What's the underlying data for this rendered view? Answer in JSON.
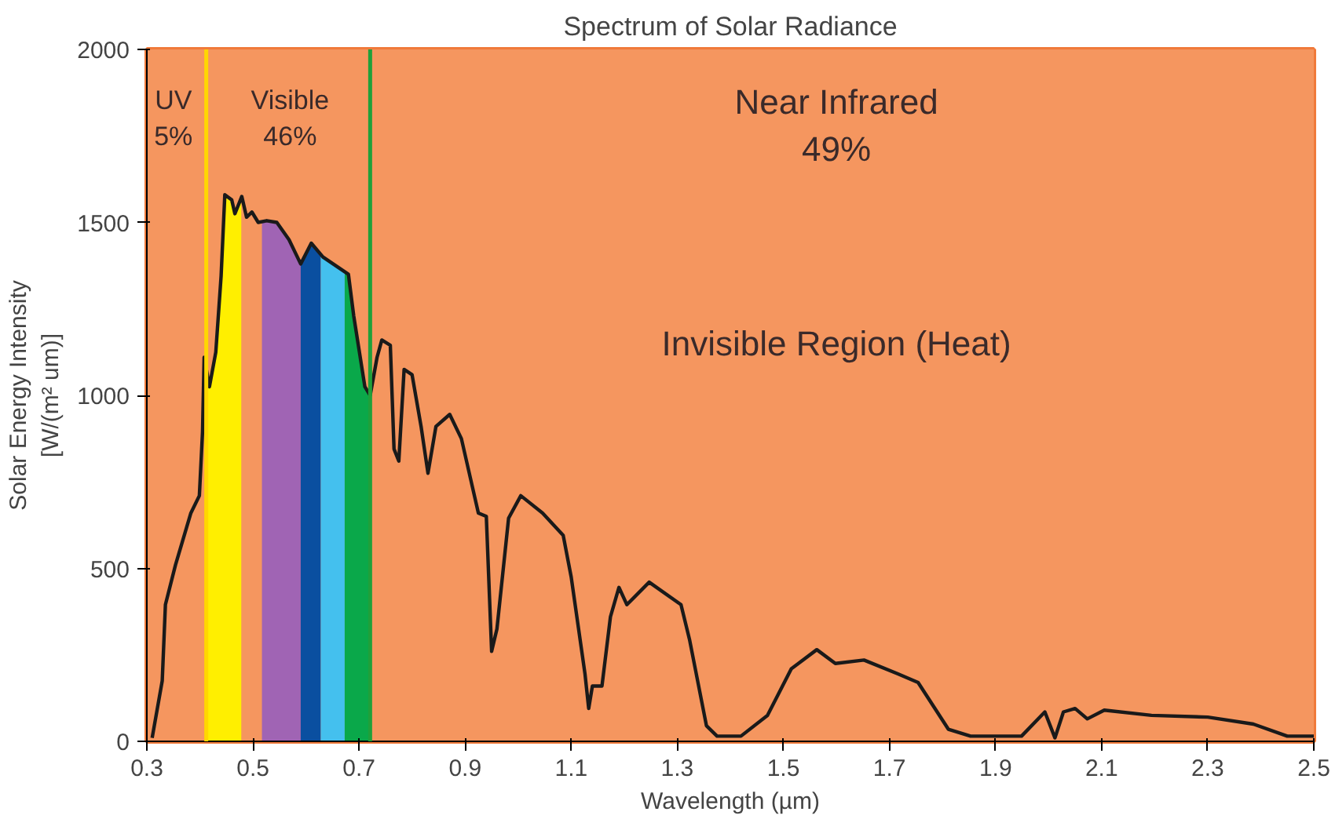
{
  "chart_data": {
    "type": "line",
    "title": "Spectrum of Solar Radiance",
    "xlabel": "Wavelength (µm)",
    "ylabel": "Solar Energy Intensity\n[W/(m² um)]",
    "xlim": [
      0.3,
      2.5
    ],
    "ylim": [
      0,
      2000
    ],
    "xticks": [
      0.3,
      0.5,
      0.7,
      0.9,
      1.1,
      1.3,
      1.5,
      1.7,
      1.9,
      2.1,
      2.3,
      2.5
    ],
    "yticks": [
      0,
      500,
      1000,
      1500,
      2000
    ],
    "bands": [
      {
        "axis": "x",
        "from": 0.3,
        "to": 2.5,
        "color": "#f5965f"
      }
    ],
    "ref_lines": [
      {
        "axis": "x",
        "value": 0.412,
        "color": "#ffd700"
      },
      {
        "axis": "x",
        "value": 0.721,
        "color": "#1fa03a"
      }
    ],
    "annotations": [
      "UV\n5%",
      "Visible\n46%",
      "Near Infrared\n49%",
      "Invisible Region (Heat)"
    ],
    "series": [
      {
        "type": "area",
        "color": "#ffef00",
        "x": [
          0.41,
          0.418,
          0.43,
          0.44,
          0.447,
          0.46,
          0.466,
          0.478
        ],
        "values": [
          1080,
          1025,
          1125,
          1345,
          1580,
          1565,
          1525,
          1570
        ]
      },
      {
        "type": "area",
        "color": "#a064b4",
        "x": [
          0.517,
          0.526,
          0.545,
          0.568,
          0.59
        ],
        "values": [
          1502,
          1505,
          1500,
          1450,
          1380
        ]
      },
      {
        "type": "area",
        "color": "#0a4fa0",
        "x": [
          0.59,
          0.61,
          0.628
        ],
        "values": [
          1380,
          1440,
          1405
        ]
      },
      {
        "type": "area",
        "color": "#44c0ee",
        "x": [
          0.628,
          0.632,
          0.673
        ],
        "values": [
          1405,
          1400,
          1355
        ]
      },
      {
        "type": "area",
        "color": "#0aa84a",
        "x": [
          0.673,
          0.68,
          0.69,
          0.711,
          0.721
        ],
        "values": [
          1352,
          1350,
          1230,
          1025,
          1000
        ]
      },
      {
        "color": "#1a1a1a",
        "x": [
          0.31,
          0.329,
          0.335,
          0.354,
          0.383,
          0.399,
          0.405,
          0.408,
          0.418,
          0.43,
          0.44,
          0.447,
          0.46,
          0.466,
          0.479,
          0.488,
          0.498,
          0.51,
          0.526,
          0.545,
          0.568,
          0.59,
          0.61,
          0.632,
          0.68,
          0.69,
          0.711,
          0.721,
          0.734,
          0.743,
          0.759,
          0.766,
          0.775,
          0.785,
          0.8,
          0.817,
          0.83,
          0.845,
          0.871,
          0.893,
          0.925,
          0.94,
          0.95,
          0.96,
          0.982,
          1.005,
          1.046,
          1.085,
          1.1,
          1.126,
          1.133,
          1.14,
          1.158,
          1.174,
          1.19,
          1.205,
          1.247,
          1.307,
          1.323,
          1.355,
          1.375,
          1.42,
          1.47,
          1.515,
          1.563,
          1.598,
          1.652,
          1.716,
          1.754,
          1.811,
          1.853,
          1.949,
          1.993,
          2.012,
          2.028,
          2.05,
          2.073,
          2.105,
          2.194,
          2.3,
          2.386,
          2.45,
          2.5
        ],
        "values": [
          10,
          175,
          395,
          510,
          660,
          710,
          895,
          1110,
          1025,
          1125,
          1345,
          1580,
          1565,
          1525,
          1575,
          1515,
          1530,
          1500,
          1505,
          1500,
          1450,
          1380,
          1440,
          1400,
          1350,
          1230,
          1025,
          1000,
          1110,
          1160,
          1145,
          845,
          810,
          1075,
          1060,
          910,
          775,
          910,
          945,
          875,
          660,
          650,
          260,
          325,
          645,
          710,
          660,
          595,
          475,
          195,
          95,
          160,
          160,
          360,
          445,
          395,
          460,
          395,
          295,
          45,
          15,
          15,
          75,
          210,
          265,
          225,
          235,
          195,
          170,
          35,
          15,
          15,
          85,
          10,
          85,
          95,
          65,
          90,
          75,
          70,
          50,
          15,
          15
        ]
      }
    ]
  }
}
